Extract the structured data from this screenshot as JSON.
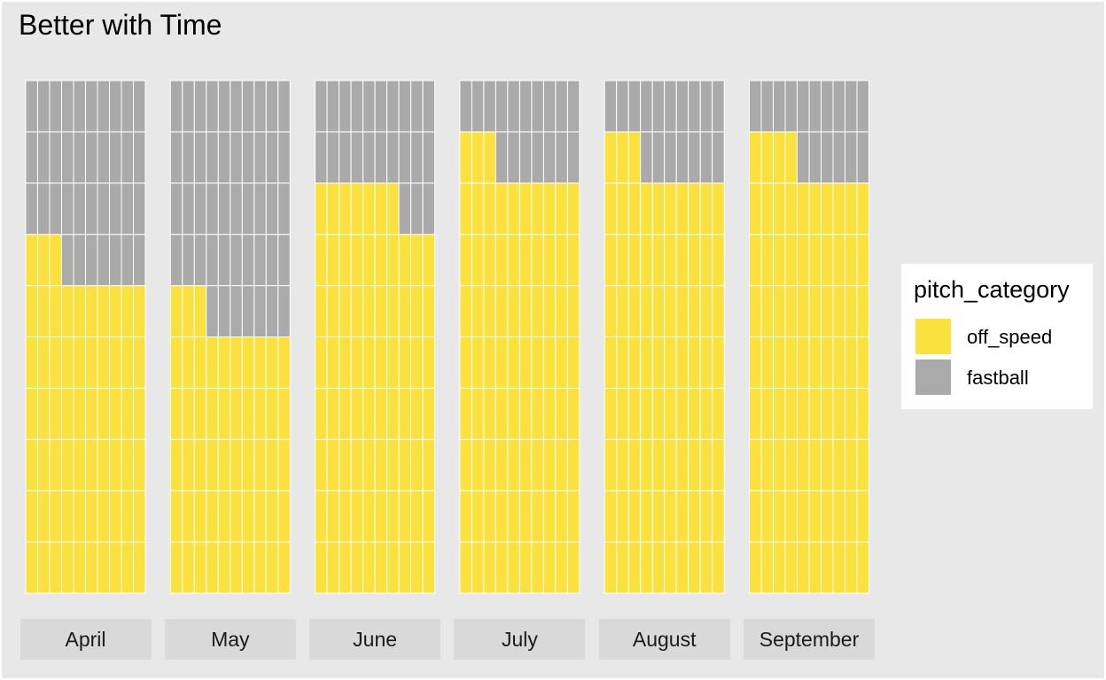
{
  "title": "Better with Time",
  "chart_data": {
    "type": "waffle",
    "title": "Better with Time",
    "grid": {
      "columns": 10,
      "rows": 10
    },
    "categories": [
      "April",
      "May",
      "June",
      "July",
      "August",
      "September"
    ],
    "series": [
      {
        "name": "off_speed",
        "color": "#fae13d",
        "values": [
          63,
          53,
          77,
          83,
          83,
          84
        ]
      },
      {
        "name": "fastball",
        "color": "#aaaaaa",
        "values": [
          37,
          47,
          23,
          17,
          17,
          16
        ]
      }
    ],
    "legend": {
      "title": "pitch_category",
      "placement": "right",
      "entries": [
        "off_speed",
        "fastball"
      ]
    }
  }
}
